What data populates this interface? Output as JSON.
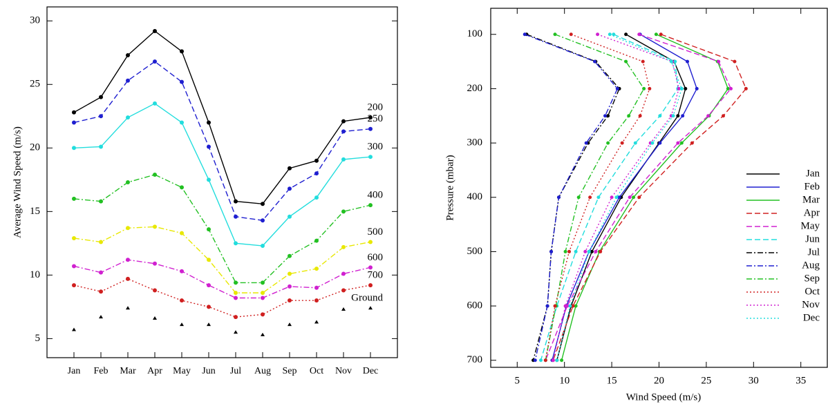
{
  "chart_data": [
    {
      "type": "line",
      "y_label": "Average Wind Speed (m/s)",
      "categories": [
        "Jan",
        "Feb",
        "Mar",
        "Apr",
        "May",
        "Jun",
        "Jul",
        "Aug",
        "Sep",
        "Oct",
        "Nov",
        "Dec"
      ],
      "ylim": [
        3.5,
        31.1
      ],
      "yticks": [
        5,
        10,
        15,
        20,
        25,
        30
      ],
      "series": [
        {
          "name": "200",
          "color": "#000000",
          "line_style": "solid",
          "values": [
            22.8,
            24.0,
            27.3,
            29.2,
            27.6,
            22.0,
            15.8,
            15.6,
            18.4,
            19.0,
            22.1,
            22.4
          ]
        },
        {
          "name": "250",
          "color": "#1f1fd0",
          "line_style": "dashed",
          "values": [
            22.0,
            22.5,
            25.3,
            26.8,
            25.2,
            20.1,
            14.6,
            14.3,
            16.8,
            18.0,
            21.3,
            21.5
          ]
        },
        {
          "name": "300",
          "color": "#22dddd",
          "line_style": "solid",
          "values": [
            20.0,
            20.1,
            22.4,
            23.5,
            22.0,
            17.5,
            12.5,
            12.3,
            14.6,
            16.1,
            19.1,
            19.3
          ]
        },
        {
          "name": "400",
          "color": "#22c022",
          "line_style": "dashdot",
          "values": [
            16.0,
            15.8,
            17.3,
            17.9,
            16.9,
            13.6,
            9.4,
            9.4,
            11.5,
            12.7,
            15.0,
            15.5
          ]
        },
        {
          "name": "500",
          "color": "#e8e800",
          "line_style": "dashdot",
          "values": [
            12.9,
            12.6,
            13.7,
            13.8,
            13.3,
            11.2,
            8.6,
            8.6,
            10.1,
            10.5,
            12.2,
            12.6
          ]
        },
        {
          "name": "600",
          "color": "#d020d0",
          "line_style": "dashdot",
          "values": [
            10.7,
            10.2,
            11.2,
            10.9,
            10.3,
            9.2,
            8.2,
            8.2,
            9.1,
            9.0,
            10.1,
            10.6
          ]
        },
        {
          "name": "700",
          "color": "#d02020",
          "line_style": "dotted",
          "values": [
            9.2,
            8.7,
            9.7,
            8.8,
            8.0,
            7.5,
            6.7,
            6.9,
            8.0,
            8.0,
            8.8,
            9.2
          ]
        },
        {
          "name": "Ground",
          "color": "#000000",
          "line_style": "none",
          "values": [
            5.7,
            6.7,
            7.4,
            6.6,
            6.1,
            6.1,
            5.5,
            5.3,
            6.1,
            6.3,
            7.3,
            7.4
          ]
        }
      ]
    },
    {
      "type": "profile",
      "x_label": "Wind Speed (m/s)",
      "y_label": "Pressure (mbar)",
      "y": [
        100,
        150,
        200,
        250,
        300,
        400,
        500,
        600,
        700
      ],
      "xlim": [
        2.2,
        37.8
      ],
      "xticks": [
        5,
        10,
        15,
        20,
        25,
        30,
        35
      ],
      "ylim": [
        713,
        52
      ],
      "yticks": [
        100,
        200,
        300,
        400,
        500,
        600,
        700
      ],
      "series": [
        {
          "name": "Jan",
          "color": "#000000",
          "line_style": "solid",
          "values": [
            16.5,
            21.6,
            22.8,
            22.0,
            20.0,
            16.0,
            12.9,
            10.7,
            9.2
          ]
        },
        {
          "name": "Feb",
          "color": "#1f1fd0",
          "line_style": "solid",
          "values": [
            18.0,
            23.0,
            24.0,
            22.5,
            20.1,
            15.8,
            12.6,
            10.2,
            8.7
          ]
        },
        {
          "name": "Mar",
          "color": "#22c022",
          "line_style": "solid",
          "values": [
            19.7,
            26.2,
            27.3,
            25.3,
            22.4,
            17.3,
            13.7,
            11.2,
            9.7
          ]
        },
        {
          "name": "Apr",
          "color": "#d02020",
          "line_style": "dashed",
          "values": [
            20.2,
            28.0,
            29.2,
            26.8,
            23.5,
            17.9,
            13.8,
            10.9,
            8.8
          ]
        },
        {
          "name": "May",
          "color": "#d020d0",
          "line_style": "dashed",
          "values": [
            17.9,
            26.3,
            27.6,
            25.2,
            22.0,
            16.9,
            13.3,
            10.3,
            8.0
          ]
        },
        {
          "name": "Jun",
          "color": "#22dddd",
          "line_style": "dashed",
          "values": [
            15.2,
            21.7,
            22.0,
            20.1,
            17.5,
            13.6,
            11.2,
            9.2,
            7.5
          ]
        },
        {
          "name": "Jul",
          "color": "#000000",
          "line_style": "dashdot",
          "values": [
            6.0,
            13.3,
            15.8,
            14.6,
            12.5,
            9.4,
            8.6,
            8.2,
            6.7
          ]
        },
        {
          "name": "Aug",
          "color": "#1f1fd0",
          "line_style": "dashdot",
          "values": [
            5.8,
            13.2,
            15.6,
            14.3,
            12.3,
            9.4,
            8.6,
            8.2,
            6.9
          ]
        },
        {
          "name": "Sep",
          "color": "#22c022",
          "line_style": "dashdot",
          "values": [
            9.0,
            16.5,
            18.4,
            16.8,
            14.6,
            11.5,
            10.1,
            9.1,
            8.0
          ]
        },
        {
          "name": "Oct",
          "color": "#d02020",
          "line_style": "dotted",
          "values": [
            10.7,
            18.3,
            19.0,
            18.0,
            16.1,
            12.7,
            10.5,
            9.0,
            8.0
          ]
        },
        {
          "name": "Nov",
          "color": "#d020d0",
          "line_style": "dotted",
          "values": [
            13.5,
            21.4,
            22.1,
            21.3,
            19.1,
            15.0,
            12.2,
            10.1,
            8.8
          ]
        },
        {
          "name": "Dec",
          "color": "#22dddd",
          "line_style": "dotted",
          "values": [
            14.8,
            21.3,
            22.4,
            21.5,
            19.3,
            15.5,
            12.6,
            10.6,
            9.2
          ]
        }
      ]
    }
  ]
}
